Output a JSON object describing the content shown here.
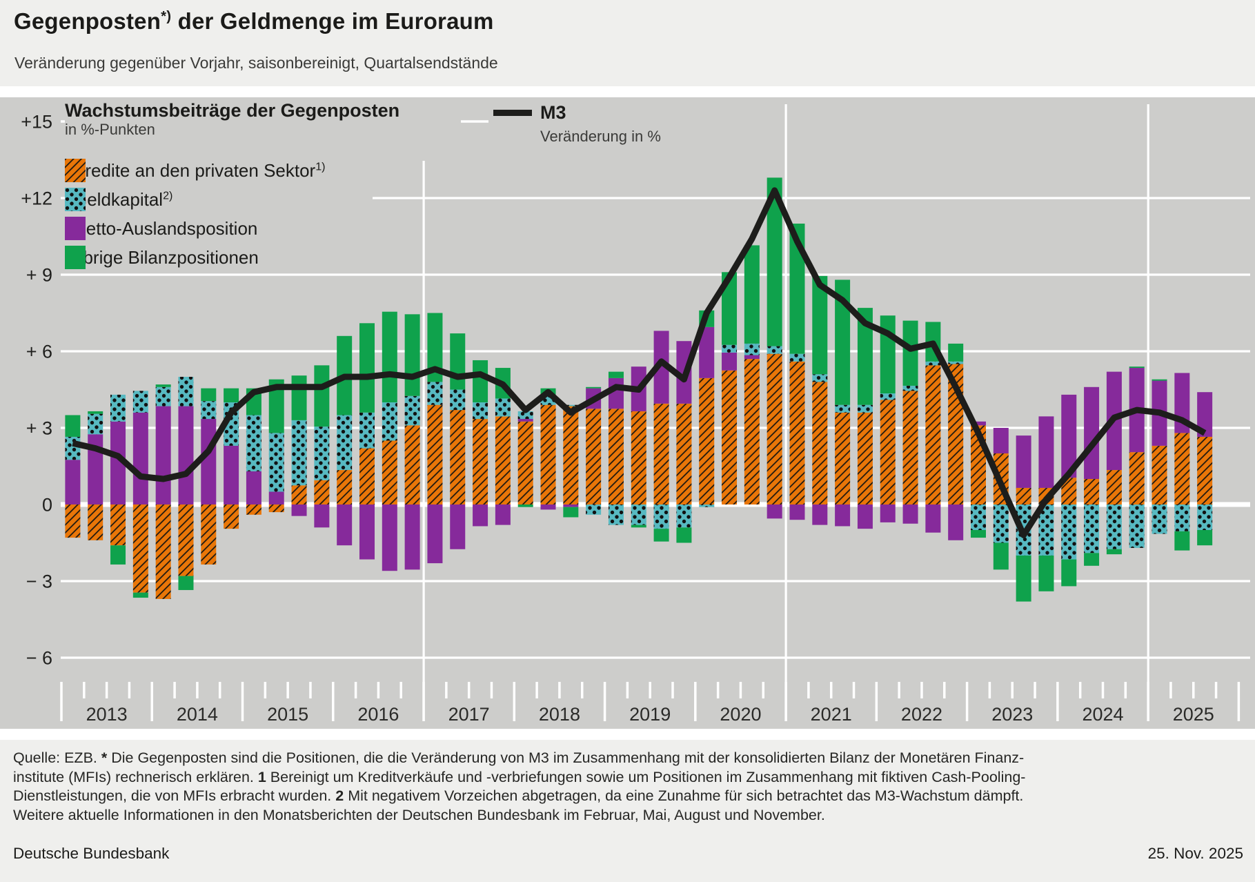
{
  "header": {
    "title_pre": "Gegenposten",
    "title_sup": "*)",
    "title_post": " der Geldmenge im Euroraum",
    "subtitle": "Veränderung gegenüber Vorjahr, saisonbereinigt, Quartalsendstände"
  },
  "legend": {
    "group_title": "Wachstumsbeiträge der Gegenposten",
    "group_subtitle": "in %-Punkten",
    "m3_label": "M3",
    "m3_subtitle": "Veränderung in %",
    "items": [
      {
        "key": "credit",
        "label": "Kredite an den privaten Sektor",
        "sup": "1)",
        "swatch": "orange-hatched-icon"
      },
      {
        "key": "geldkapital",
        "label": "Geldkapital",
        "sup": "2)",
        "swatch": "teal-dotted-icon"
      },
      {
        "key": "netto",
        "label": "Netto-Auslandsposition",
        "sup": "",
        "swatch": "purple-icon"
      },
      {
        "key": "uebrige",
        "label": "übrige Bilanzpositionen",
        "sup": "",
        "swatch": "green-icon"
      }
    ]
  },
  "colors": {
    "background": "#EFEFED",
    "panel": "#CDCDCB",
    "grid": "#FFFFFF",
    "orange": "#E97608",
    "teal": "#57B9C1",
    "purple": "#862A9B",
    "green": "#0FA24C",
    "m3_line": "#1D1D1B",
    "text": "#1B1B19"
  },
  "chart_data": {
    "type": "bar",
    "subtype": "stacked-bars-with-line",
    "title": "Wachstumsbeiträge der Gegenposten in %-Punkten; M3 Veränderung in %",
    "xlabel": "",
    "ylabel": "",
    "ylim": [
      -7.5,
      16.5
    ],
    "y_ticks": [
      15,
      12,
      9,
      6,
      3,
      0,
      -3,
      -6
    ],
    "y_tick_labels": [
      "+15",
      "+12",
      "+ 9",
      "+ 6",
      "+ 3",
      "0",
      "− 3",
      "− 6"
    ],
    "years": [
      "2013",
      "2014",
      "2015",
      "2016",
      "2017",
      "2018",
      "2019",
      "2020",
      "2021",
      "2022",
      "2023",
      "2024",
      "2025"
    ],
    "grid_year_lines": [
      "2013",
      "2017",
      "2021",
      "2025"
    ],
    "legend_position": "top-left",
    "stack_order": [
      "credit",
      "netto",
      "geldkapital",
      "uebrige"
    ],
    "x": [
      "2013 Q1",
      "2013 Q2",
      "2013 Q3",
      "2013 Q4",
      "2014 Q1",
      "2014 Q2",
      "2014 Q3",
      "2014 Q4",
      "2015 Q1",
      "2015 Q2",
      "2015 Q3",
      "2015 Q4",
      "2016 Q1",
      "2016 Q2",
      "2016 Q3",
      "2016 Q4",
      "2017 Q1",
      "2017 Q2",
      "2017 Q3",
      "2017 Q4",
      "2018 Q1",
      "2018 Q2",
      "2018 Q3",
      "2018 Q4",
      "2019 Q1",
      "2019 Q2",
      "2019 Q3",
      "2019 Q4",
      "2020 Q1",
      "2020 Q2",
      "2020 Q3",
      "2020 Q4",
      "2021 Q1",
      "2021 Q2",
      "2021 Q3",
      "2021 Q4",
      "2022 Q1",
      "2022 Q2",
      "2022 Q3",
      "2022 Q4",
      "2023 Q1",
      "2023 Q2",
      "2023 Q3",
      "2023 Q4",
      "2024 Q1",
      "2024 Q2",
      "2024 Q3",
      "2024 Q4",
      "2025 Q1",
      "2025 Q2",
      "2025 Q3"
    ],
    "series": [
      {
        "key": "credit",
        "name": "Kredite an den privaten Sektor",
        "style": "orange-hatched",
        "values": [
          -1.3,
          -1.4,
          -1.6,
          -3.45,
          -3.7,
          -2.8,
          -2.35,
          -0.95,
          -0.4,
          -0.3,
          0.75,
          0.95,
          1.35,
          2.2,
          2.5,
          3.1,
          3.9,
          3.7,
          3.35,
          3.45,
          3.25,
          3.9,
          3.85,
          3.75,
          3.75,
          3.65,
          3.95,
          3.95,
          4.95,
          5.25,
          5.7,
          5.9,
          5.6,
          4.8,
          3.6,
          3.6,
          4.1,
          4.45,
          5.45,
          5.5,
          3.1,
          2.0,
          0.65,
          0.65,
          1.05,
          1.0,
          1.35,
          2.05,
          2.3,
          2.8,
          2.65
        ]
      },
      {
        "key": "geldkapital",
        "name": "Geldkapital",
        "style": "teal-dotted",
        "values": [
          0.9,
          0.8,
          1.05,
          0.85,
          0.75,
          1.15,
          0.7,
          1.7,
          2.2,
          2.3,
          2.55,
          2.1,
          2.15,
          1.4,
          1.5,
          1.15,
          0.9,
          0.8,
          0.65,
          0.7,
          0.3,
          0.4,
          0.05,
          -0.4,
          -0.8,
          -0.8,
          -0.95,
          -0.9,
          -0.1,
          0.3,
          0.45,
          0.3,
          0.3,
          0.3,
          0.3,
          0.3,
          0.25,
          0.2,
          0.15,
          0.1,
          -1.0,
          -1.5,
          -2.0,
          -2.0,
          -2.15,
          -1.9,
          -1.75,
          -1.7,
          -1.15,
          -1.05,
          -1.0
        ]
      },
      {
        "key": "netto",
        "name": "Netto-Auslandsposition",
        "style": "purple-solid",
        "values": [
          1.75,
          2.75,
          3.25,
          3.6,
          3.85,
          3.85,
          3.35,
          2.3,
          1.3,
          0.5,
          -0.45,
          -0.9,
          -1.6,
          -2.15,
          -2.6,
          -2.55,
          -2.3,
          -1.75,
          -0.85,
          -0.8,
          0.1,
          -0.2,
          -0.1,
          0.8,
          1.2,
          1.75,
          2.85,
          2.45,
          2.0,
          0.7,
          0.15,
          -0.55,
          -0.6,
          -0.8,
          -0.85,
          -0.95,
          -0.7,
          -0.75,
          -1.1,
          -1.4,
          0.15,
          1.0,
          2.05,
          2.8,
          3.25,
          3.6,
          3.85,
          3.3,
          2.55,
          2.35,
          1.75
        ]
      },
      {
        "key": "uebrige",
        "name": "übrige Bilanzpositionen",
        "style": "green-solid",
        "values": [
          0.85,
          0.1,
          -0.75,
          -0.2,
          0.1,
          -0.55,
          0.5,
          0.55,
          1.05,
          2.1,
          1.75,
          2.4,
          3.1,
          3.5,
          3.55,
          3.2,
          2.7,
          2.2,
          1.65,
          1.2,
          -0.1,
          0.25,
          -0.4,
          0.05,
          0.25,
          -0.1,
          -0.5,
          -0.6,
          0.65,
          2.85,
          3.85,
          6.6,
          5.1,
          3.85,
          4.9,
          3.8,
          3.05,
          2.55,
          1.55,
          0.7,
          -0.3,
          -1.05,
          -1.8,
          -1.4,
          -1.05,
          -0.5,
          -0.2,
          0.05,
          0.05,
          -0.75,
          -0.6
        ]
      }
    ],
    "line": {
      "name": "M3",
      "unit": "Veränderung in %",
      "values": [
        2.4,
        2.2,
        1.9,
        1.1,
        1.0,
        1.2,
        2.1,
        3.6,
        4.4,
        4.6,
        4.6,
        4.6,
        5.0,
        5.0,
        5.1,
        5.0,
        5.3,
        5.0,
        5.1,
        4.7,
        3.7,
        4.4,
        3.6,
        4.1,
        4.6,
        4.5,
        5.6,
        4.9,
        7.5,
        8.9,
        10.4,
        12.3,
        10.3,
        8.6,
        8.0,
        7.1,
        6.7,
        6.1,
        6.3,
        4.6,
        2.8,
        0.8,
        -1.2,
        0.2,
        1.2,
        2.3,
        3.4,
        3.7,
        3.6,
        3.3,
        2.8
      ]
    }
  },
  "footer": {
    "lines": [
      [
        {
          "t": "Quelle: EZB. ",
          "b": false
        },
        {
          "t": "*",
          "b": true
        },
        {
          "t": " Die Gegenposten sind die Positionen, die die Veränderung von M3 im Zusammenhang mit der konsolidierten Bilanz der Monetären Finanz-",
          "b": false
        }
      ],
      [
        {
          "t": "institute (MFIs) rechnerisch erklären. ",
          "b": false
        },
        {
          "t": "1",
          "b": true
        },
        {
          "t": " Bereinigt um Kreditverkäufe und -verbriefungen sowie um Positionen im Zusammenhang mit fiktiven Cash-Pooling-",
          "b": false
        }
      ],
      [
        {
          "t": "Dienstleistungen, die von MFIs erbracht wurden. ",
          "b": false
        },
        {
          "t": "2",
          "b": true
        },
        {
          "t": " Mit negativem Vorzeichen abgetragen, da eine Zunahme für sich betrachtet das M3-Wachstum dämpft.",
          "b": false
        }
      ],
      [
        {
          "t": "Weitere aktuelle Informationen in den Monatsberichten der Deutschen Bundesbank im Februar, Mai, August und November.",
          "b": false
        }
      ]
    ],
    "brand": "Deutsche Bundesbank",
    "date": "25. Nov. 2025"
  }
}
